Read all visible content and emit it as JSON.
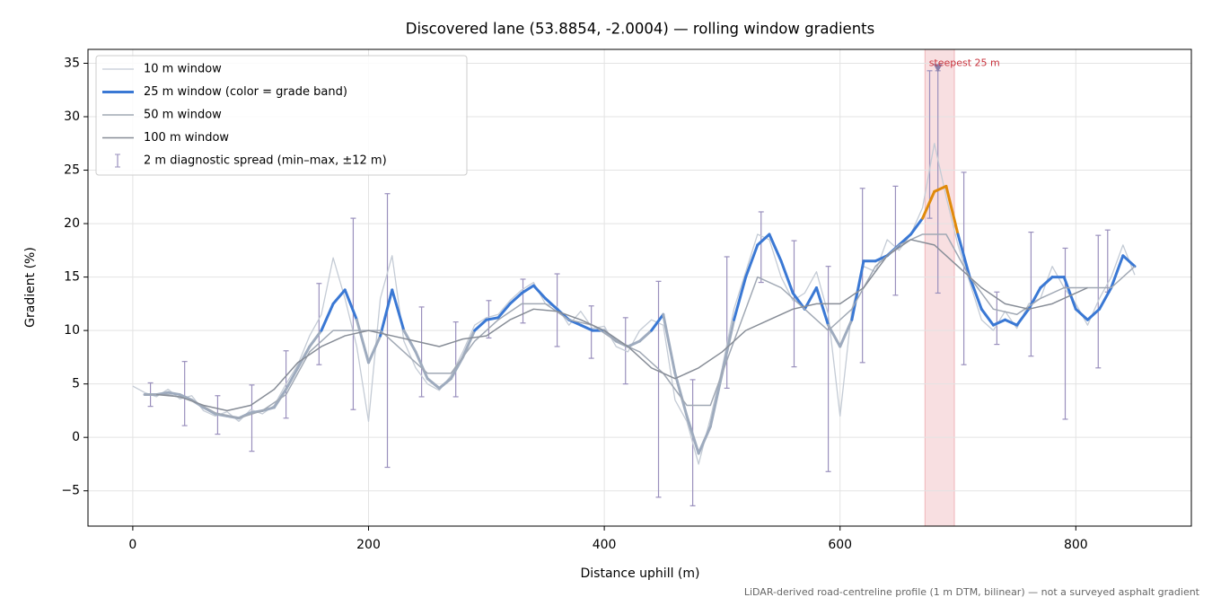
{
  "chart_data": {
    "type": "line",
    "title": "Discovered lane (53.8854, -2.0004) — rolling window gradients",
    "x_label": "Distance uphill (m)",
    "y_label": "Gradient (%)",
    "footnote": "LiDAR-derived road-centreline profile (1 m DTM, bilinear) — not a surveyed asphalt gradient",
    "xlim": [
      -38,
      898
    ],
    "ylim": [
      -8.3,
      36.3
    ],
    "xticks": [
      0,
      200,
      400,
      600,
      800
    ],
    "yticks": [
      {
        "value": -5,
        "label": "−5"
      },
      0,
      5,
      10,
      15,
      20,
      25,
      30,
      35
    ],
    "grid": true,
    "legend": "upper-left",
    "grade_band_breaks": [
      10,
      20
    ],
    "grade_band_colors": [
      "#9eabbe",
      "#3a78d4",
      "#e08a0b"
    ],
    "series": [
      {
        "name": "10 m window",
        "color": "#c4cbd5",
        "width": 1.3,
        "x": [
          0,
          10,
          20,
          30,
          40,
          50,
          60,
          70,
          80,
          90,
          100,
          110,
          120,
          130,
          140,
          150,
          160,
          170,
          180,
          190,
          200,
          210,
          220,
          230,
          240,
          250,
          260,
          270,
          280,
          290,
          300,
          310,
          320,
          330,
          340,
          350,
          360,
          370,
          380,
          390,
          400,
          410,
          420,
          430,
          440,
          450,
          460,
          470,
          480,
          490,
          500,
          510,
          520,
          530,
          540,
          550,
          560,
          570,
          580,
          590,
          600,
          610,
          620,
          630,
          640,
          650,
          660,
          670,
          680,
          690,
          700,
          710,
          720,
          730,
          740,
          750,
          760,
          770,
          780,
          790,
          800,
          810,
          820,
          830,
          840,
          850
        ],
        "values": [
          4.8,
          4.2,
          3.8,
          4.5,
          3.6,
          3.9,
          2.5,
          2.0,
          2.4,
          1.5,
          2.6,
          2.2,
          3.0,
          5.0,
          6.8,
          9.5,
          11.5,
          16.8,
          13.0,
          8.5,
          1.5,
          13.0,
          17.0,
          9.0,
          6.5,
          5.0,
          4.4,
          5.8,
          8.0,
          10.5,
          11.2,
          11.5,
          12.8,
          13.8,
          14.5,
          12.5,
          12.2,
          10.5,
          11.8,
          10.2,
          10.4,
          8.5,
          8.0,
          10.0,
          11.0,
          10.5,
          3.5,
          1.5,
          -2.5,
          1.8,
          6.5,
          12.0,
          15.5,
          19.0,
          18.5,
          15.0,
          12.8,
          13.5,
          15.5,
          11.5,
          2.0,
          12.0,
          16.0,
          15.5,
          18.5,
          17.5,
          19.0,
          21.5,
          27.5,
          22.5,
          18.0,
          14.5,
          11.0,
          10.0,
          11.8,
          10.2,
          12.5,
          13.0,
          16.0,
          14.0,
          12.5,
          10.5,
          13.0,
          15.0,
          18.0,
          15.2
        ]
      },
      {
        "name": "25 m window (color = grade band)",
        "color": "#3a78d4",
        "width": 3,
        "banded": true,
        "x": [
          10,
          20,
          30,
          40,
          50,
          60,
          70,
          80,
          90,
          100,
          110,
          120,
          130,
          140,
          150,
          160,
          170,
          180,
          190,
          200,
          210,
          220,
          230,
          240,
          250,
          260,
          270,
          280,
          290,
          300,
          310,
          320,
          330,
          340,
          350,
          360,
          370,
          380,
          390,
          400,
          410,
          420,
          430,
          440,
          450,
          460,
          470,
          480,
          490,
          500,
          510,
          520,
          530,
          540,
          550,
          560,
          570,
          580,
          590,
          600,
          610,
          620,
          630,
          640,
          650,
          660,
          670,
          680,
          690,
          700,
          710,
          720,
          730,
          740,
          750,
          760,
          770,
          780,
          790,
          800,
          810,
          820,
          830,
          840,
          850
        ],
        "values": [
          4.0,
          4.0,
          4.2,
          4.0,
          3.5,
          2.8,
          2.2,
          2.0,
          1.8,
          2.3,
          2.5,
          2.8,
          4.5,
          6.5,
          8.5,
          10.0,
          12.5,
          13.8,
          11.0,
          7.0,
          9.5,
          13.8,
          10.0,
          8.0,
          5.5,
          4.6,
          5.5,
          7.5,
          10.0,
          11.0,
          11.2,
          12.5,
          13.5,
          14.2,
          13.0,
          12.0,
          11.0,
          10.5,
          10.0,
          10.0,
          9.0,
          8.5,
          9.0,
          10.0,
          11.5,
          6.0,
          2.0,
          -1.5,
          1.0,
          6.0,
          11.0,
          15.0,
          18.0,
          19.0,
          16.5,
          13.5,
          12.0,
          14.0,
          10.5,
          8.5,
          11.0,
          16.5,
          16.5,
          17.0,
          18.0,
          19.0,
          20.5,
          23.0,
          23.5,
          19.0,
          15.0,
          12.0,
          10.5,
          11.0,
          10.5,
          12.0,
          14.0,
          15.0,
          15.0,
          12.0,
          11.0,
          12.0,
          14.0,
          17.0,
          16.0
        ]
      },
      {
        "name": "50 m window",
        "color": "#a0a8b4",
        "width": 1.5,
        "x": [
          10,
          30,
          50,
          70,
          90,
          110,
          130,
          150,
          170,
          190,
          210,
          230,
          250,
          270,
          290,
          310,
          330,
          350,
          370,
          390,
          410,
          430,
          450,
          470,
          490,
          510,
          530,
          550,
          570,
          590,
          610,
          630,
          650,
          670,
          690,
          710,
          730,
          750,
          770,
          790,
          810,
          830,
          850
        ],
        "values": [
          4,
          4,
          3.5,
          2.3,
          1.8,
          2.5,
          4,
          8,
          10,
          10,
          10,
          8,
          6,
          6,
          9,
          11,
          12.5,
          12.5,
          11,
          10.5,
          9,
          8,
          6,
          3,
          3,
          9,
          15,
          14,
          12,
          10,
          12,
          16,
          18,
          19,
          19,
          15,
          12,
          11.5,
          13,
          14,
          14,
          14,
          16
        ]
      },
      {
        "name": "100 m window",
        "color": "#878d97",
        "width": 1.5,
        "x": [
          20,
          40,
          60,
          80,
          100,
          120,
          140,
          160,
          180,
          200,
          220,
          240,
          260,
          280,
          300,
          320,
          340,
          360,
          380,
          400,
          420,
          440,
          460,
          480,
          500,
          520,
          540,
          560,
          580,
          600,
          620,
          640,
          660,
          680,
          700,
          720,
          740,
          760,
          780,
          800,
          810
        ],
        "values": [
          4,
          3.8,
          3,
          2.5,
          3,
          4.5,
          7,
          8.5,
          9.5,
          10,
          9.5,
          9,
          8.5,
          9.2,
          9.5,
          11,
          12,
          11.8,
          11,
          10,
          8.5,
          6.5,
          5.5,
          6.5,
          8,
          10,
          11,
          12,
          12.5,
          12.5,
          14,
          17,
          18.5,
          18,
          16,
          14,
          12.5,
          12,
          12.5,
          13.5,
          14
        ]
      }
    ],
    "errorbars": {
      "name": "2 m diagnostic spread (min–max, ±12 m)",
      "color": "#9a90bd",
      "x": [
        15,
        44,
        72,
        101,
        130,
        158,
        187,
        216,
        245,
        274,
        302,
        331,
        360,
        389,
        418,
        446,
        475,
        504,
        533,
        561,
        590,
        619,
        647,
        676,
        683,
        705,
        733,
        762,
        791,
        819,
        827
      ],
      "low": [
        2.9,
        1.1,
        0.3,
        -1.3,
        1.8,
        6.8,
        2.6,
        -2.8,
        3.8,
        3.8,
        9.3,
        10.7,
        8.5,
        7.4,
        5,
        -5.6,
        -6.4,
        4.6,
        14.5,
        6.6,
        -3.2,
        7,
        13.3,
        20.5,
        13.5,
        6.8,
        8.7,
        7.6,
        1.7,
        6.5,
        13.6
      ],
      "high": [
        5.1,
        7.1,
        3.9,
        4.9,
        8.1,
        14.4,
        20.5,
        22.8,
        12.2,
        10.8,
        12.8,
        14.8,
        15.3,
        12.3,
        11.2,
        14.6,
        5.4,
        16.9,
        21.1,
        18.4,
        16,
        23.3,
        23.5,
        34.3,
        34.3,
        24.8,
        13.6,
        19.2,
        17.7,
        18.9,
        19.4
      ]
    },
    "highlight": {
      "xlim": [
        672,
        697
      ],
      "color": "#d9505a",
      "label": "steepest 25 m",
      "marker": {
        "x": 683,
        "y": 34.5
      }
    }
  }
}
